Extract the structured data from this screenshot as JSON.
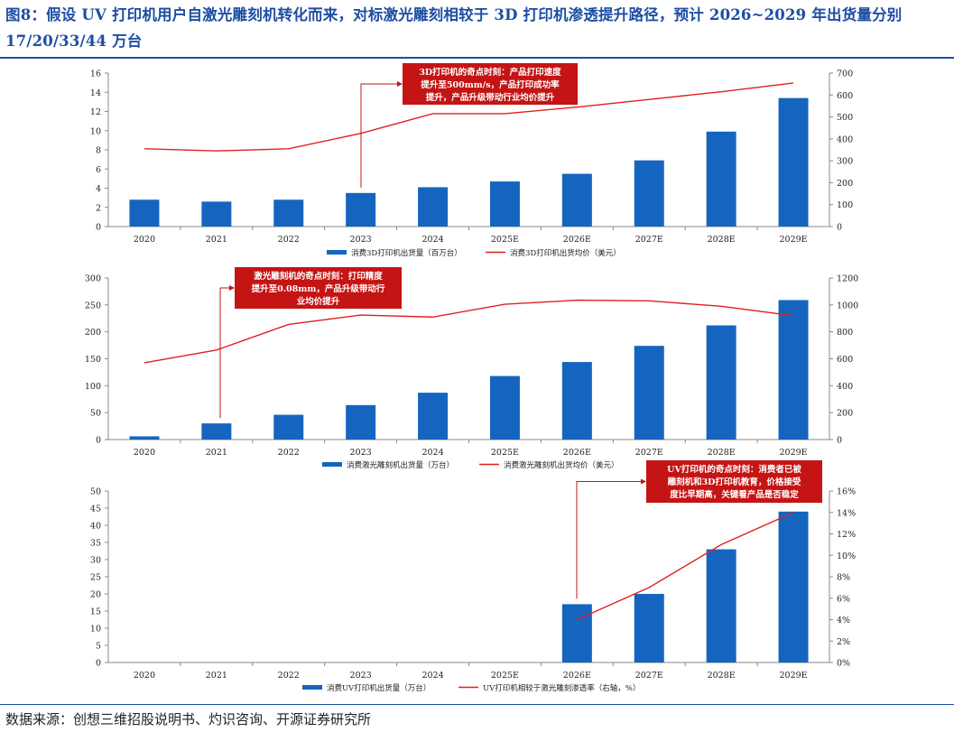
{
  "title": "图8：假设 UV 打印机用户自激光雕刻机转化而来，对标激光雕刻相较于 3D 打印机渗透提升路径，预计 2026~2029 年出货量分别 17/20/33/44 万台",
  "source": "数据来源：创想三维招股说明书、灼识咨询、开源证券研究所",
  "colors": {
    "bar": "#1565c0",
    "line": "#e02020",
    "annotation_bg": "#c41414",
    "title": "#1d4ea3"
  },
  "chart_data": [
    {
      "type": "bar",
      "categories": [
        "2020",
        "2021",
        "2022",
        "2023",
        "2024",
        "2025E",
        "2026E",
        "2027E",
        "2028E",
        "2029E"
      ],
      "series": [
        {
          "name": "消费3D打印机出货量（百万台）",
          "kind": "bar",
          "axis": "left",
          "values": [
            2.8,
            2.6,
            2.8,
            3.5,
            4.1,
            4.7,
            5.5,
            6.9,
            9.9,
            13.4
          ]
        },
        {
          "name": "消费3D打印机出货均价（美元）",
          "kind": "line",
          "axis": "right",
          "values": [
            355,
            345,
            355,
            425,
            515,
            515,
            545,
            580,
            615,
            655
          ]
        }
      ],
      "ylim_left": [
        0,
        16
      ],
      "yticks_left": [
        0,
        2,
        4,
        6,
        8,
        10,
        12,
        14,
        16
      ],
      "ylim_right": [
        0,
        700
      ],
      "yticks_right": [
        0,
        100,
        200,
        300,
        400,
        500,
        600,
        700
      ],
      "annotation": {
        "lines": [
          "3D打印机的奇点时刻：产品打印速度",
          "提升至500mm/s，产品打印成功率",
          "提升，产品升级带动行业均价提升"
        ],
        "category": "2023"
      }
    },
    {
      "type": "bar",
      "categories": [
        "2020",
        "2021",
        "2022",
        "2023",
        "2024",
        "2025E",
        "2026E",
        "2027E",
        "2028E",
        "2029E"
      ],
      "series": [
        {
          "name": "消费激光雕刻机出货量（万台）",
          "kind": "bar",
          "axis": "left",
          "values": [
            6,
            30,
            46,
            64,
            87,
            118,
            144,
            174,
            212,
            259
          ]
        },
        {
          "name": "消费激光雕刻机出货均价（美元）",
          "kind": "line",
          "axis": "right",
          "values": [
            570,
            665,
            855,
            925,
            910,
            1005,
            1035,
            1030,
            990,
            920
          ]
        }
      ],
      "ylim_left": [
        0,
        300
      ],
      "yticks_left": [
        0,
        50,
        100,
        150,
        200,
        250,
        300
      ],
      "ylim_right": [
        0,
        1200
      ],
      "yticks_right": [
        0,
        200,
        400,
        600,
        800,
        1000,
        1200
      ],
      "annotation": {
        "lines": [
          "激光雕刻机的奇点时刻：打印精度",
          "提升至0.08mm，产品升级带动行",
          "业均价提升"
        ],
        "category": "2021"
      }
    },
    {
      "type": "bar",
      "categories": [
        "2020",
        "2021",
        "2022",
        "2023",
        "2024",
        "2025E",
        "2026E",
        "2027E",
        "2028E",
        "2029E"
      ],
      "series": [
        {
          "name": "消费UV打印机出货量（万台）",
          "kind": "bar",
          "axis": "left",
          "values": [
            null,
            null,
            null,
            null,
            null,
            null,
            17,
            20,
            33,
            44
          ]
        },
        {
          "name": "UV打印机相较于激光雕刻渗透率（右轴，%）",
          "kind": "line",
          "axis": "right",
          "values": [
            null,
            null,
            null,
            null,
            null,
            null,
            4,
            7,
            11,
            14
          ]
        }
      ],
      "ylim_left": [
        0,
        50
      ],
      "yticks_left": [
        0,
        5,
        10,
        15,
        20,
        25,
        30,
        35,
        40,
        45,
        50
      ],
      "ylim_right": [
        0,
        16
      ],
      "yticks_right": [
        "0%",
        "2%",
        "4%",
        "6%",
        "8%",
        "10%",
        "12%",
        "14%",
        "16%"
      ],
      "annotation": {
        "lines": [
          "UV打印机的奇点时刻：消费者已被",
          "雕刻机和3D打印机教育，价格接受",
          "度比早期高，关键看产品是否稳定"
        ],
        "category": "2026E"
      }
    }
  ]
}
